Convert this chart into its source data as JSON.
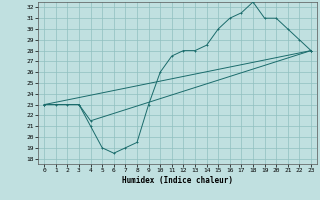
{
  "xlabel": "Humidex (Indice chaleur)",
  "xlim": [
    -0.5,
    23.5
  ],
  "ylim": [
    17.5,
    32.5
  ],
  "xticks": [
    0,
    1,
    2,
    3,
    4,
    5,
    6,
    7,
    8,
    9,
    10,
    11,
    12,
    13,
    14,
    15,
    16,
    17,
    18,
    19,
    20,
    21,
    22,
    23
  ],
  "yticks": [
    18,
    19,
    20,
    21,
    22,
    23,
    24,
    25,
    26,
    27,
    28,
    29,
    30,
    31,
    32
  ],
  "bg_color": "#c0e0e0",
  "grid_color": "#90c0c0",
  "line_color": "#1a6b6b",
  "line1_x": [
    0,
    1,
    2,
    3,
    4,
    5,
    6,
    7,
    8,
    9,
    10,
    11,
    12,
    13,
    14,
    15,
    16,
    17,
    18,
    19,
    20,
    21,
    22,
    23
  ],
  "line1_y": [
    23,
    23,
    23,
    23,
    21,
    19,
    18.5,
    19,
    19.5,
    23,
    26,
    27.5,
    28,
    28,
    28.5,
    30,
    31,
    31.5,
    32.5,
    31,
    31,
    30,
    29,
    28
  ],
  "line2_x": [
    0,
    3,
    4,
    23
  ],
  "line2_y": [
    23,
    23,
    21.5,
    28
  ],
  "line3_x": [
    0,
    23
  ],
  "line3_y": [
    23,
    28
  ]
}
